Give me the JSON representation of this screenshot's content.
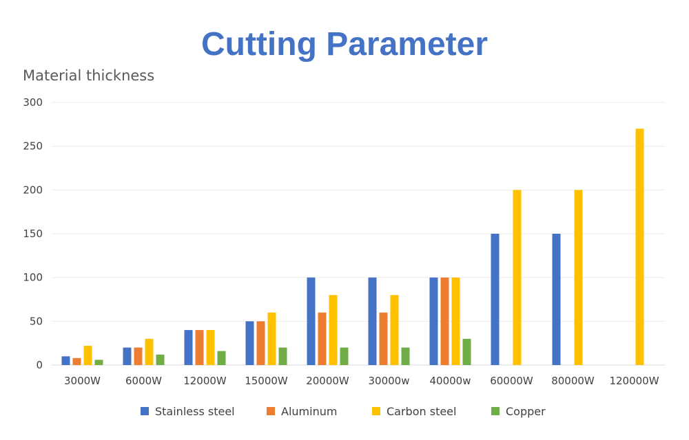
{
  "chart_data": {
    "type": "bar",
    "title": "Cutting Parameter",
    "ylabel": "Material thickness",
    "xlabel": "",
    "categories": [
      "3000W",
      "6000W",
      "12000W",
      "15000W",
      "20000W",
      "30000w",
      "40000w",
      "60000W",
      "80000W",
      "120000W"
    ],
    "series": [
      {
        "name": "Stainless steel",
        "color": "#4472c4",
        "values": [
          10,
          20,
          40,
          50,
          100,
          100,
          100,
          150,
          150,
          null
        ]
      },
      {
        "name": "Aluminum",
        "color": "#ed7d31",
        "values": [
          8,
          20,
          40,
          50,
          60,
          60,
          100,
          null,
          null,
          null
        ]
      },
      {
        "name": "Carbon steel",
        "color": "#ffc000",
        "values": [
          22,
          30,
          40,
          60,
          80,
          80,
          100,
          200,
          200,
          270
        ]
      },
      {
        "name": "Copper",
        "color": "#70ad47",
        "values": [
          6,
          12,
          16,
          20,
          20,
          20,
          30,
          null,
          null,
          null
        ]
      }
    ],
    "ylim": [
      0,
      300
    ],
    "yticks": [
      "0",
      "50",
      "100",
      "150",
      "200",
      "250",
      "300"
    ],
    "grid": true,
    "legend_position": "bottom",
    "title_color": "#4472c4"
  }
}
